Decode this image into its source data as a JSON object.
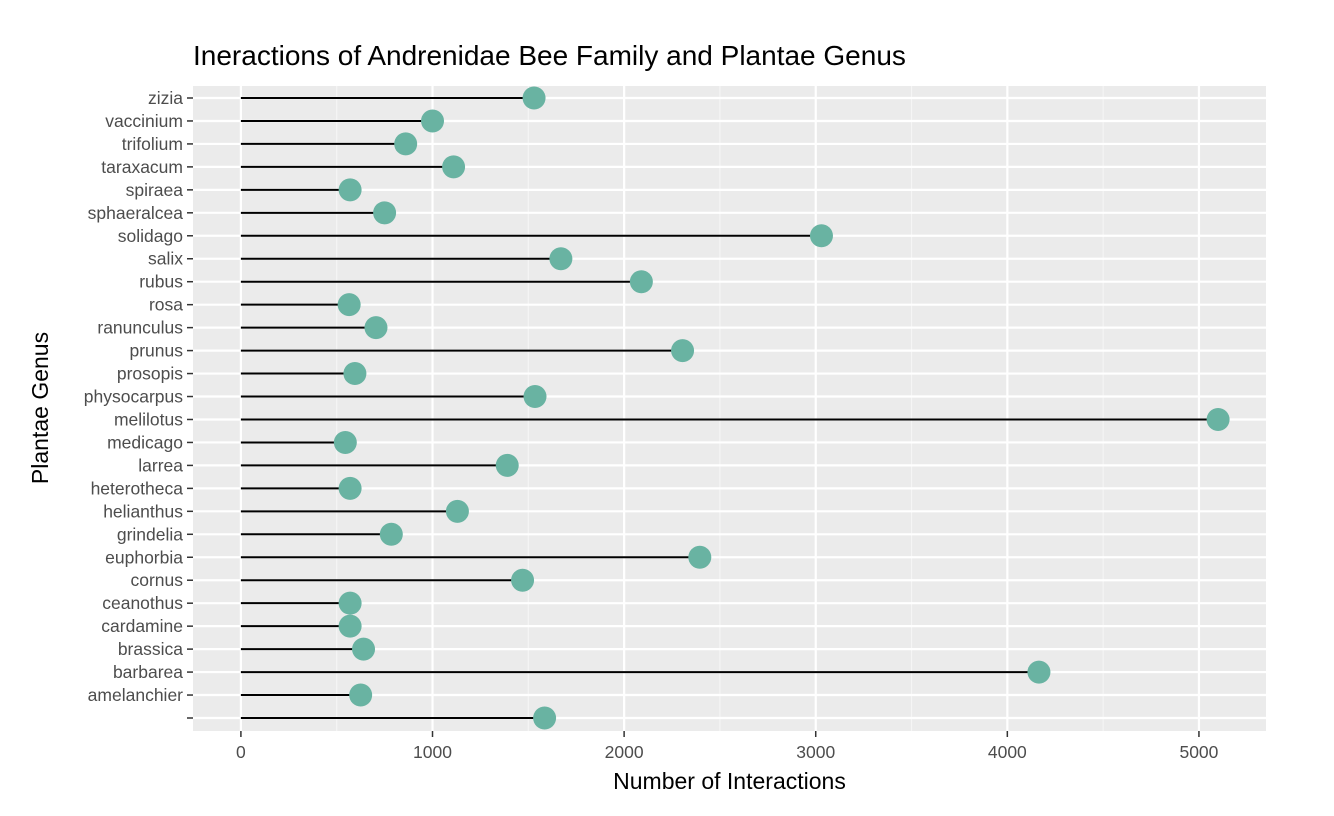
{
  "chart_data": {
    "type": "lollipop",
    "title": "Ineractions of Andrenidae Bee Family and Plantae Genus",
    "xlabel": "Number of Interactions",
    "ylabel": "Plantae Genus",
    "xlim": [
      -250,
      5350
    ],
    "x_ticks": [
      0,
      1000,
      2000,
      3000,
      4000,
      5000
    ],
    "x_tick_labels": [
      "0",
      "1000",
      "2000",
      "3000",
      "4000",
      "5000"
    ],
    "grid": true,
    "legend": "none",
    "categories": [
      "zizia",
      "vaccinium",
      "trifolium",
      "taraxacum",
      "spiraea",
      "sphaeralcea",
      "solidago",
      "salix",
      "rubus",
      "rosa",
      "ranunculus",
      "prunus",
      "prosopis",
      "physocarpus",
      "melilotus",
      "medicago",
      "larrea",
      "heterotheca",
      "helianthus",
      "grindelia",
      "euphorbia",
      "cornus",
      "ceanothus",
      "cardamine",
      "brassica",
      "barbarea",
      "amelanchier",
      ""
    ],
    "values": [
      1530,
      1000,
      860,
      1110,
      570,
      750,
      3030,
      1670,
      2090,
      565,
      705,
      2305,
      595,
      1535,
      5100,
      545,
      1390,
      570,
      1130,
      785,
      2395,
      1470,
      570,
      570,
      640,
      4165,
      625,
      1585
    ]
  },
  "colors": {
    "panel_bg": "#ebebeb",
    "grid_major": "#ffffff",
    "grid_minor": "#f5f5f5",
    "point": "#69b3a2",
    "segment": "#000000",
    "tick_text": "#4d4d4d"
  }
}
